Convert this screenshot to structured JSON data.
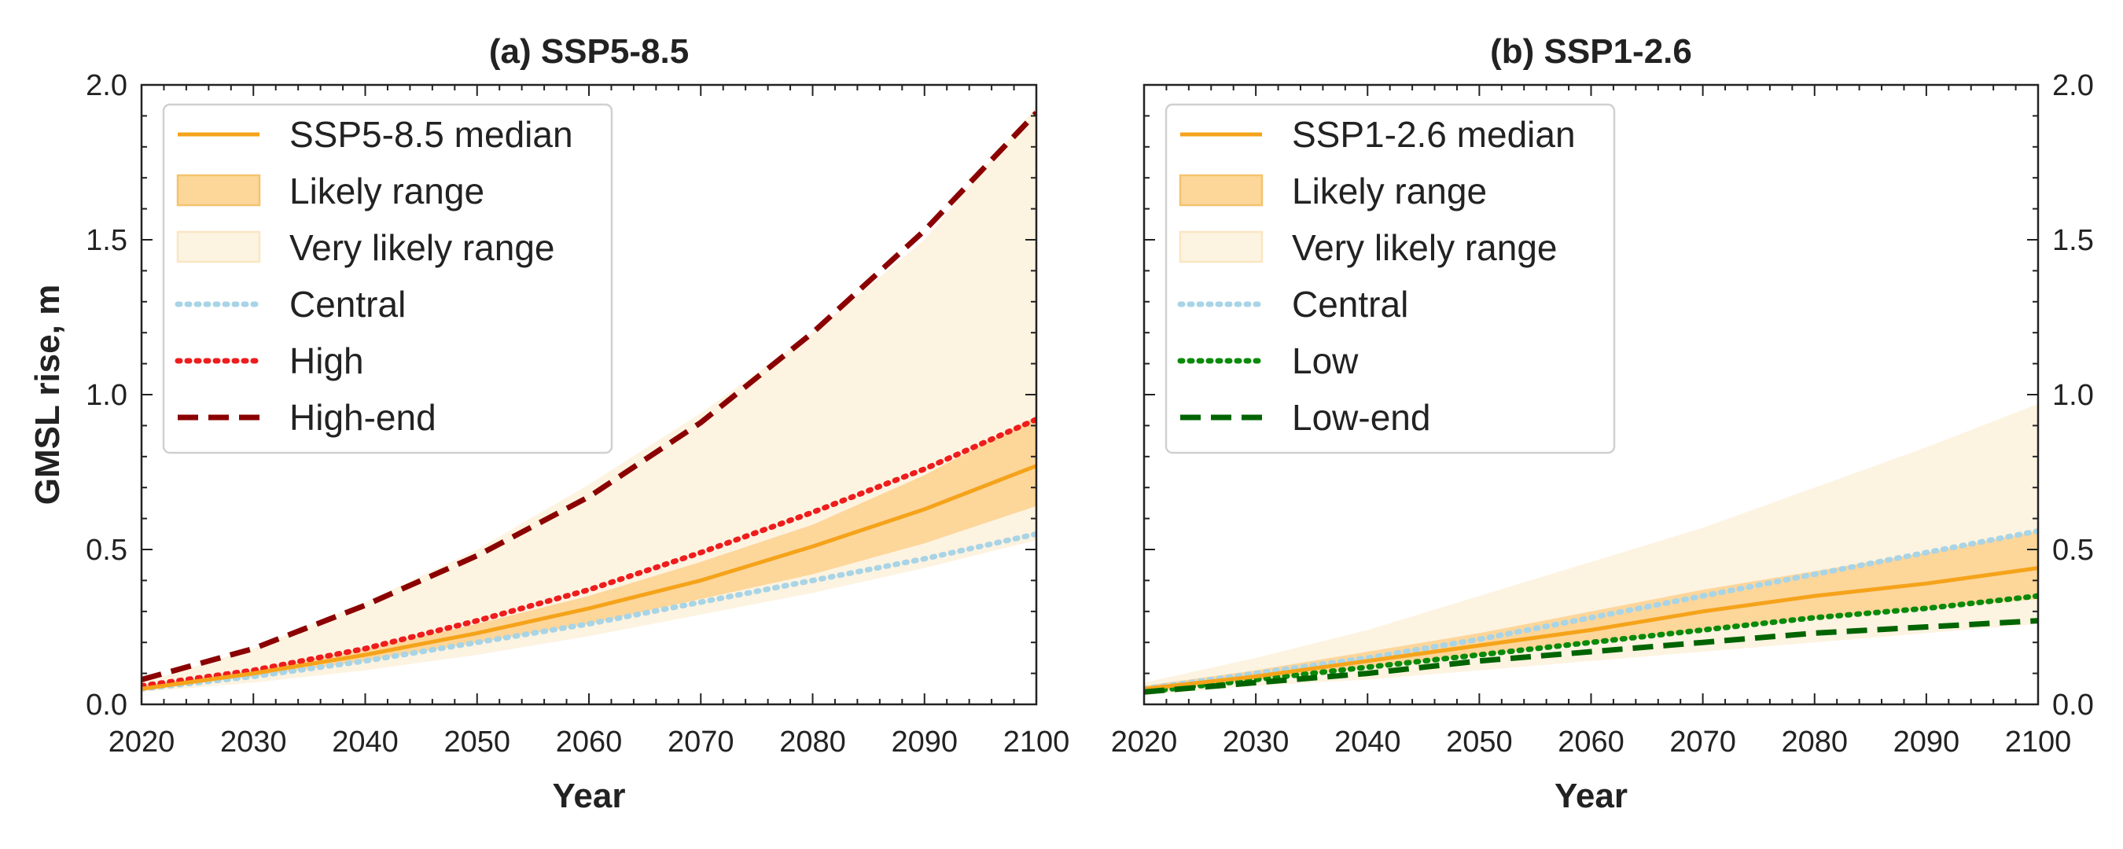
{
  "chart_data": [
    {
      "type": "line",
      "title": "(a) SSP5-8.5",
      "xlabel": "Year",
      "ylabel": "GMSL rise, m",
      "xlim": [
        2020,
        2100
      ],
      "ylim": [
        0,
        2.0
      ],
      "xticks": [
        "2020",
        "2030",
        "2040",
        "2050",
        "2060",
        "2070",
        "2080",
        "2090",
        "2100"
      ],
      "yticks": [
        "0.0",
        "0.5",
        "1.0",
        "1.5",
        "2.0"
      ],
      "y_axis_side": "left",
      "grid": false,
      "legend_position": "upper-left",
      "x": [
        2020,
        2030,
        2040,
        2050,
        2060,
        2070,
        2080,
        2090,
        2100
      ],
      "bands": [
        {
          "name": "Very likely range",
          "color": "#fdf3e1",
          "lower": [
            0.04,
            0.07,
            0.11,
            0.16,
            0.22,
            0.29,
            0.36,
            0.44,
            0.53
          ],
          "upper": [
            0.07,
            0.18,
            0.33,
            0.5,
            0.71,
            0.94,
            1.2,
            1.5,
            1.93
          ]
        },
        {
          "name": "Likely range",
          "color": "#fdd69a",
          "lower": [
            0.05,
            0.09,
            0.14,
            0.2,
            0.26,
            0.34,
            0.42,
            0.52,
            0.64
          ],
          "upper": [
            0.06,
            0.11,
            0.18,
            0.26,
            0.35,
            0.46,
            0.58,
            0.74,
            0.93
          ]
        }
      ],
      "series": [
        {
          "name": "SSP5-8.5 median",
          "color": "#f5a31a",
          "style": "solid",
          "values": [
            0.05,
            0.1,
            0.16,
            0.23,
            0.31,
            0.4,
            0.51,
            0.63,
            0.77
          ]
        },
        {
          "name": "Central",
          "color": "#a8d4e6",
          "style": "dotted",
          "values": [
            0.05,
            0.09,
            0.14,
            0.2,
            0.26,
            0.33,
            0.4,
            0.47,
            0.55
          ]
        },
        {
          "name": "High",
          "color": "#ee1c1c",
          "style": "dotted",
          "values": [
            0.06,
            0.11,
            0.18,
            0.27,
            0.37,
            0.49,
            0.62,
            0.76,
            0.92
          ]
        },
        {
          "name": "High-end",
          "color": "#8b0000",
          "style": "dashed",
          "values": [
            0.08,
            0.18,
            0.32,
            0.48,
            0.67,
            0.91,
            1.2,
            1.53,
            1.91
          ]
        }
      ]
    },
    {
      "type": "line",
      "title": "(b) SSP1-2.6",
      "xlabel": "Year",
      "ylabel": "",
      "xlim": [
        2020,
        2100
      ],
      "ylim": [
        0,
        2.0
      ],
      "xticks": [
        "2020",
        "2030",
        "2040",
        "2050",
        "2060",
        "2070",
        "2080",
        "2090",
        "2100"
      ],
      "yticks": [
        "0.0",
        "0.5",
        "1.0",
        "1.5",
        "2.0"
      ],
      "y_axis_side": "right",
      "grid": false,
      "legend_position": "upper-left",
      "x": [
        2020,
        2030,
        2040,
        2050,
        2060,
        2070,
        2080,
        2090,
        2100
      ],
      "bands": [
        {
          "name": "Very likely range",
          "color": "#fdf3e1",
          "lower": [
            0.03,
            0.06,
            0.08,
            0.11,
            0.14,
            0.17,
            0.2,
            0.23,
            0.26
          ],
          "upper": [
            0.07,
            0.15,
            0.24,
            0.35,
            0.46,
            0.57,
            0.7,
            0.83,
            0.97
          ]
        },
        {
          "name": "Likely range",
          "color": "#fdd69a",
          "lower": [
            0.04,
            0.08,
            0.12,
            0.16,
            0.2,
            0.24,
            0.28,
            0.31,
            0.34
          ],
          "upper": [
            0.06,
            0.11,
            0.17,
            0.23,
            0.3,
            0.37,
            0.43,
            0.49,
            0.56
          ]
        }
      ],
      "series": [
        {
          "name": "SSP1-2.6 median",
          "color": "#f5a31a",
          "style": "solid",
          "values": [
            0.05,
            0.09,
            0.14,
            0.19,
            0.24,
            0.3,
            0.35,
            0.39,
            0.44
          ]
        },
        {
          "name": "Central",
          "color": "#a8d4e6",
          "style": "dotted",
          "values": [
            0.05,
            0.1,
            0.15,
            0.21,
            0.28,
            0.35,
            0.42,
            0.49,
            0.56
          ]
        },
        {
          "name": "Low",
          "color": "#0a8a0a",
          "style": "dotted",
          "values": [
            0.04,
            0.08,
            0.12,
            0.16,
            0.2,
            0.24,
            0.28,
            0.31,
            0.35
          ]
        },
        {
          "name": "Low-end",
          "color": "#006400",
          "style": "dashed",
          "values": [
            0.04,
            0.07,
            0.1,
            0.14,
            0.17,
            0.2,
            0.23,
            0.25,
            0.27
          ]
        }
      ]
    }
  ]
}
